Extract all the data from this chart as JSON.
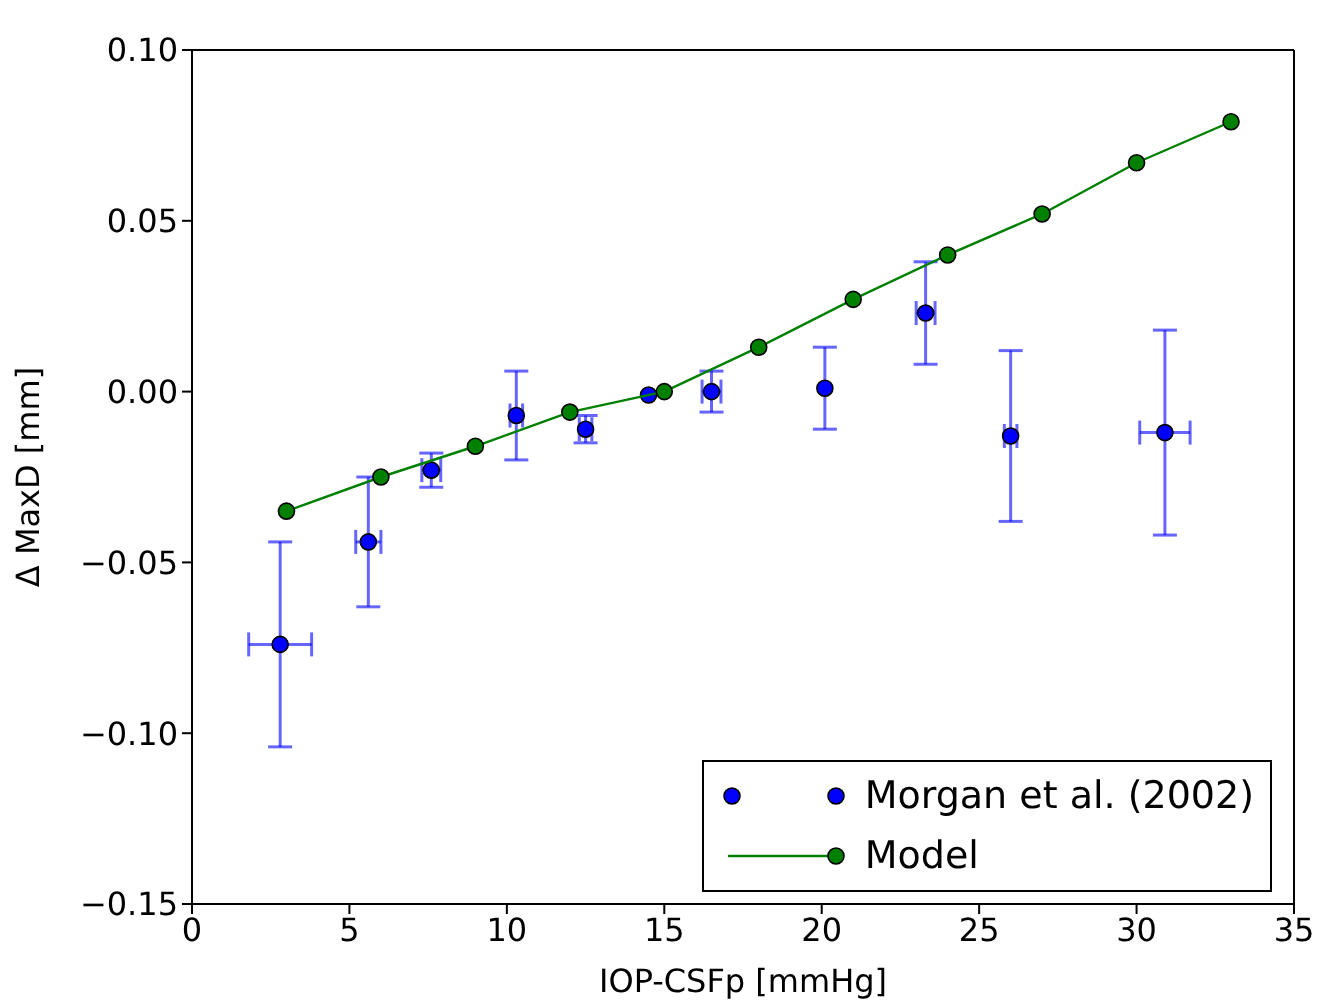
{
  "chart_data": {
    "type": "scatter",
    "xlabel": "IOP-CSFp [mmHg]",
    "ylabel": "Δ MaxD [mm]",
    "xlim": [
      0,
      35
    ],
    "xticks": [
      0,
      5,
      10,
      15,
      20,
      25,
      30,
      35
    ],
    "ylim": [
      -0.15,
      0.1
    ],
    "yticks": [
      {
        "value": -0.15,
        "label": "−0.15"
      },
      {
        "value": -0.1,
        "label": "−0.10"
      },
      {
        "value": -0.05,
        "label": "−0.05"
      },
      {
        "value": 0,
        "label": "0.00"
      },
      {
        "value": 0.05,
        "label": "0.05"
      },
      {
        "value": 0.1,
        "label": "0.10"
      }
    ],
    "legend": "bottom right",
    "marker": "circle",
    "grid": false,
    "series": [
      {
        "name": "Morgan et al. (2002)",
        "type": "scatter",
        "color": "#0000ff",
        "x": [
          2.8,
          5.6,
          7.6,
          10.3,
          12.5,
          14.5,
          16.5,
          20.1,
          23.3,
          26.0,
          30.9
        ],
        "values": [
          -0.074,
          -0.044,
          -0.023,
          -0.007,
          -0.011,
          -0.001,
          0.0,
          0.001,
          0.023,
          -0.013,
          -0.012
        ],
        "errors": [
          0.03,
          0.019,
          0.005,
          0.013,
          0.004,
          null,
          0.006,
          0.012,
          0.015,
          0.025,
          0.03
        ],
        "xerrors": [
          1.0,
          0.4,
          0.3,
          0.2,
          0.2,
          null,
          0.3,
          null,
          0.3,
          0.2,
          0.8
        ]
      },
      {
        "name": "Model",
        "type": "line",
        "color": "#008000",
        "x": [
          3,
          6,
          9,
          12,
          15,
          18,
          21,
          24,
          27,
          30,
          33
        ],
        "values": [
          -0.035,
          -0.025,
          -0.016,
          -0.006,
          0.0,
          0.013,
          0.027,
          0.04,
          0.052,
          0.067,
          0.079
        ]
      }
    ]
  }
}
